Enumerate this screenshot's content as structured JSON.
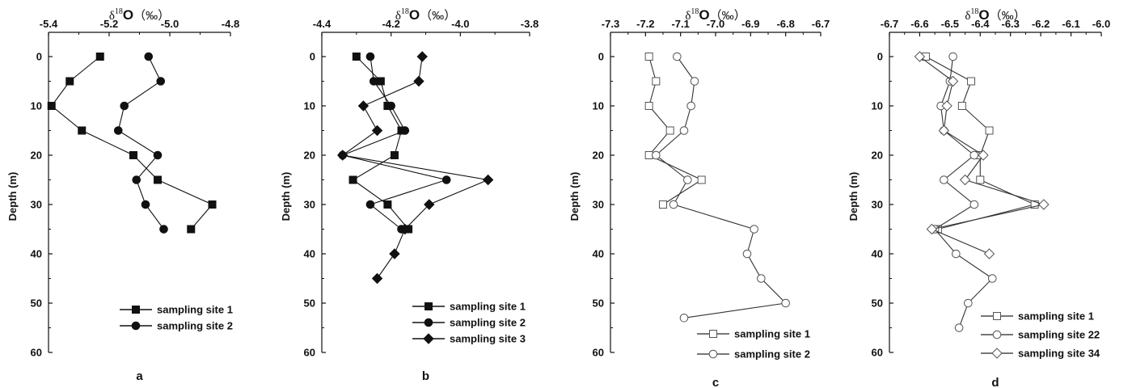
{
  "chart_data": [
    {
      "type": "line",
      "panel_label": "a",
      "title_base": "δ",
      "title_sup": "18",
      "title_o": "O",
      "title_unit": "（‰）",
      "xlabel": "",
      "ylabel": "Depth (m)",
      "x_axis_position": "top",
      "y_inverted": true,
      "xlim": [
        -5.4,
        -4.8
      ],
      "ylim": [
        0,
        60
      ],
      "x_ticks": [
        -5.4,
        -5.2,
        -5.0,
        -4.8
      ],
      "x_tick_labels": [
        "-5.4",
        "-5.2",
        "-5.0",
        "-4.8"
      ],
      "y_ticks": [
        0,
        10,
        20,
        30,
        40,
        50,
        60
      ],
      "y_tick_labels": [
        "0",
        "10",
        "20",
        "30",
        "40",
        "50",
        "60"
      ],
      "legend_position": "bottom-right",
      "series": [
        {
          "name": "sampling site 1",
          "marker": "square",
          "filled": true,
          "x": [
            -5.23,
            -5.33,
            -5.39,
            -5.29,
            -5.12,
            -5.04,
            -4.86,
            -4.93
          ],
          "y": [
            0,
            5,
            10,
            15,
            20,
            25,
            30,
            35
          ]
        },
        {
          "name": "sampling site 2",
          "marker": "circle",
          "filled": true,
          "x": [
            -5.07,
            -5.03,
            -5.15,
            -5.17,
            -5.04,
            -5.11,
            -5.08,
            -5.02
          ],
          "y": [
            0,
            5,
            10,
            15,
            20,
            25,
            30,
            35
          ]
        }
      ]
    },
    {
      "type": "line",
      "panel_label": "b",
      "title_base": "δ",
      "title_sup": "18",
      "title_o": "O",
      "title_unit": "（‰）",
      "xlabel": "",
      "ylabel": "Depth (m)",
      "x_axis_position": "top",
      "y_inverted": true,
      "xlim": [
        -4.4,
        -3.8
      ],
      "ylim": [
        0,
        60
      ],
      "x_ticks": [
        -4.4,
        -4.2,
        -4.0,
        -3.8
      ],
      "x_tick_labels": [
        "-4.4",
        "-4.2",
        "-4.0",
        "-3.8"
      ],
      "y_ticks": [
        0,
        10,
        20,
        30,
        40,
        50,
        60
      ],
      "y_tick_labels": [
        "0",
        "10",
        "20",
        "30",
        "40",
        "50",
        "60"
      ],
      "legend_position": "bottom-right",
      "series": [
        {
          "name": "sampling site 1",
          "marker": "square",
          "filled": true,
          "x": [
            -4.3,
            -4.23,
            -4.21,
            -4.17,
            -4.19,
            -4.31,
            -4.21,
            -4.15
          ],
          "y": [
            0,
            5,
            10,
            15,
            20,
            25,
            30,
            35
          ]
        },
        {
          "name": "sampling site 2",
          "marker": "circle",
          "filled": true,
          "x": [
            -4.26,
            -4.25,
            -4.2,
            -4.16,
            -4.34,
            -4.04,
            -4.26,
            -4.17
          ],
          "y": [
            0,
            5,
            10,
            15,
            20,
            25,
            30,
            35
          ]
        },
        {
          "name": "sampling site 3",
          "marker": "diamond",
          "filled": true,
          "x": [
            -4.11,
            -4.12,
            -4.28,
            -4.24,
            -4.34,
            -3.92,
            -4.09,
            -4.16,
            -4.19,
            -4.24
          ],
          "y": [
            0,
            5,
            10,
            15,
            20,
            25,
            30,
            35,
            40,
            45
          ]
        }
      ]
    },
    {
      "type": "line",
      "panel_label": "c",
      "title_base": "δ",
      "title_sup": "18",
      "title_o": "O",
      "title_unit": "（‰）",
      "xlabel": "",
      "ylabel": "Depth (m)",
      "x_axis_position": "top",
      "y_inverted": true,
      "xlim": [
        -7.3,
        -6.7
      ],
      "ylim": [
        0,
        60
      ],
      "x_ticks": [
        -7.3,
        -7.2,
        -7.1,
        -7.0,
        -6.9,
        -6.8,
        -6.7
      ],
      "x_tick_labels": [
        "-7.3",
        "-7.2",
        "-7.1",
        "-7.0",
        "-6.9",
        "-6.8",
        "-6.7"
      ],
      "y_ticks": [
        0,
        10,
        20,
        30,
        40,
        50,
        60
      ],
      "y_tick_labels": [
        "0",
        "10",
        "20",
        "30",
        "40",
        "50",
        "60"
      ],
      "legend_position": "bottom-right",
      "series": [
        {
          "name": "sampling site 1",
          "marker": "square",
          "filled": false,
          "x": [
            -7.19,
            -7.17,
            -7.19,
            -7.13,
            -7.19,
            -7.04,
            -7.15
          ],
          "y": [
            0,
            5,
            10,
            15,
            20,
            25,
            30
          ]
        },
        {
          "name": "sampling site 2",
          "marker": "circle",
          "filled": false,
          "x": [
            -7.11,
            -7.06,
            -7.07,
            -7.09,
            -7.17,
            -7.08,
            -7.12,
            -6.89,
            -6.91,
            -6.87,
            -6.8,
            -7.09
          ],
          "y": [
            0,
            5,
            10,
            15,
            20,
            25,
            30,
            35,
            40,
            45,
            50,
            53
          ]
        }
      ]
    },
    {
      "type": "line",
      "panel_label": "d",
      "title_base": "δ",
      "title_sup": "18",
      "title_o": "O",
      "title_unit": "（‰）",
      "xlabel": "",
      "ylabel": "Depth (m)",
      "x_axis_position": "top",
      "y_inverted": true,
      "xlim": [
        -6.7,
        -6.0
      ],
      "ylim": [
        0,
        60
      ],
      "x_ticks": [
        -6.7,
        -6.6,
        -6.5,
        -6.4,
        -6.3,
        -6.2,
        -6.1,
        -6.0
      ],
      "x_tick_labels": [
        "-6.7",
        "-6.6",
        "-6.5",
        "-6.4",
        "-6.3",
        "-6.2",
        "-6.1",
        "-6.0"
      ],
      "y_ticks": [
        0,
        10,
        20,
        30,
        40,
        50,
        60
      ],
      "y_tick_labels": [
        "0",
        "10",
        "20",
        "30",
        "40",
        "50",
        "60"
      ],
      "legend_position": "bottom-right",
      "series": [
        {
          "name": "sampling site 1",
          "marker": "square",
          "filled": false,
          "x": [
            -6.58,
            -6.43,
            -6.46,
            -6.37,
            -6.4,
            -6.4,
            -6.22,
            -6.54
          ],
          "y": [
            0,
            5,
            10,
            15,
            20,
            25,
            30,
            35
          ]
        },
        {
          "name": "sampling site 22",
          "marker": "circle",
          "filled": false,
          "x": [
            -6.49,
            -6.5,
            -6.53,
            -6.52,
            -6.42,
            -6.52,
            -6.42,
            -6.55,
            -6.48,
            -6.36,
            -6.44,
            -6.47
          ],
          "y": [
            0,
            5,
            10,
            15,
            20,
            25,
            30,
            35,
            40,
            45,
            50,
            55
          ]
        },
        {
          "name": "sampling site 34",
          "marker": "diamond",
          "filled": false,
          "x": [
            -6.6,
            -6.49,
            -6.51,
            -6.52,
            -6.39,
            -6.45,
            -6.19,
            -6.56,
            -6.37
          ],
          "y": [
            0,
            5,
            10,
            15,
            20,
            25,
            30,
            35,
            40
          ]
        }
      ]
    }
  ]
}
